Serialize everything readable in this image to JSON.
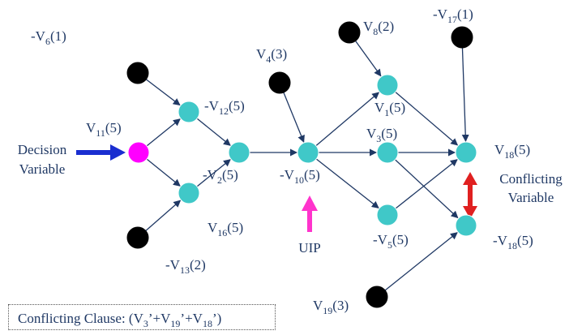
{
  "colors": {
    "assigned_node": "#40c8c8",
    "decision_node": "#ff00ff",
    "external_node": "#000000",
    "edge": "#1f3864",
    "decision_arrow": "#1a2ed0",
    "uip_arrow": "#ff33cc",
    "conflict_arrow": "#e02020",
    "label_text": "#1f3864"
  },
  "nodes": [
    {
      "id": "v6",
      "type": "external",
      "label": {
        "pre": "-V",
        "sub": "6",
        "post": "(1)"
      }
    },
    {
      "id": "v13",
      "type": "external",
      "label": {
        "pre": "-V",
        "sub": "13",
        "post": "(2)"
      }
    },
    {
      "id": "v4",
      "type": "external",
      "label": {
        "pre": "V",
        "sub": "4",
        "post": "(3)"
      }
    },
    {
      "id": "v8",
      "type": "external",
      "label": {
        "pre": "V",
        "sub": "8",
        "post": "(2)"
      }
    },
    {
      "id": "v17",
      "type": "external",
      "label": {
        "pre": "-V",
        "sub": "17",
        "post": "(1)"
      }
    },
    {
      "id": "v19",
      "type": "external",
      "label": {
        "pre": "V",
        "sub": "19",
        "post": "(3)"
      }
    },
    {
      "id": "v11",
      "type": "decision",
      "label": {
        "pre": "V",
        "sub": "11",
        "post": "(5)"
      }
    },
    {
      "id": "v12",
      "type": "assigned",
      "label": {
        "pre": "-V",
        "sub": "12",
        "post": "(5)"
      }
    },
    {
      "id": "v16",
      "type": "assigned",
      "label": {
        "pre": "V",
        "sub": "16",
        "post": "(5)"
      }
    },
    {
      "id": "v2",
      "type": "assigned",
      "label": {
        "pre": "-V",
        "sub": "2",
        "post": "(5)"
      }
    },
    {
      "id": "v10",
      "type": "assigned",
      "label": {
        "pre": "-V",
        "sub": "10",
        "post": "(5)"
      }
    },
    {
      "id": "v1",
      "type": "assigned",
      "label": {
        "pre": "V",
        "sub": "1",
        "post": "(5)"
      }
    },
    {
      "id": "v3",
      "type": "assigned",
      "label": {
        "pre": "V",
        "sub": "3",
        "post": "(5)"
      }
    },
    {
      "id": "v5",
      "type": "assigned",
      "label": {
        "pre": "-V",
        "sub": "5",
        "post": "(5)"
      }
    },
    {
      "id": "v18",
      "type": "assigned",
      "label": {
        "pre": "V",
        "sub": "18",
        "post": "(5)"
      }
    },
    {
      "id": "nv18",
      "type": "assigned",
      "label": {
        "pre": "-V",
        "sub": "18",
        "post": "(5)"
      }
    }
  ],
  "edges": [
    [
      "v6",
      "v12"
    ],
    [
      "v11",
      "v12"
    ],
    [
      "v11",
      "v16"
    ],
    [
      "v13",
      "v16"
    ],
    [
      "v12",
      "v2"
    ],
    [
      "v16",
      "v2"
    ],
    [
      "v2",
      "v10"
    ],
    [
      "v4",
      "v10"
    ],
    [
      "v10",
      "v1"
    ],
    [
      "v10",
      "v3"
    ],
    [
      "v10",
      "v5"
    ],
    [
      "v8",
      "v1"
    ],
    [
      "v1",
      "v18"
    ],
    [
      "v3",
      "v18"
    ],
    [
      "v5",
      "v18"
    ],
    [
      "v17",
      "v18"
    ],
    [
      "v3",
      "nv18"
    ],
    [
      "v19",
      "nv18"
    ]
  ],
  "annotations": {
    "decision_line1": "Decision",
    "decision_line2": "Variable",
    "uip": "UIP",
    "conflicting_line1": "Conflicting",
    "conflicting_line2": "Variable"
  },
  "clause": {
    "prefix": "Conflicting Clause: (V",
    "s1": "3",
    "m1": "’+V",
    "s2": "19",
    "m2": "’+V",
    "s3": "18",
    "suffix": "’)"
  }
}
